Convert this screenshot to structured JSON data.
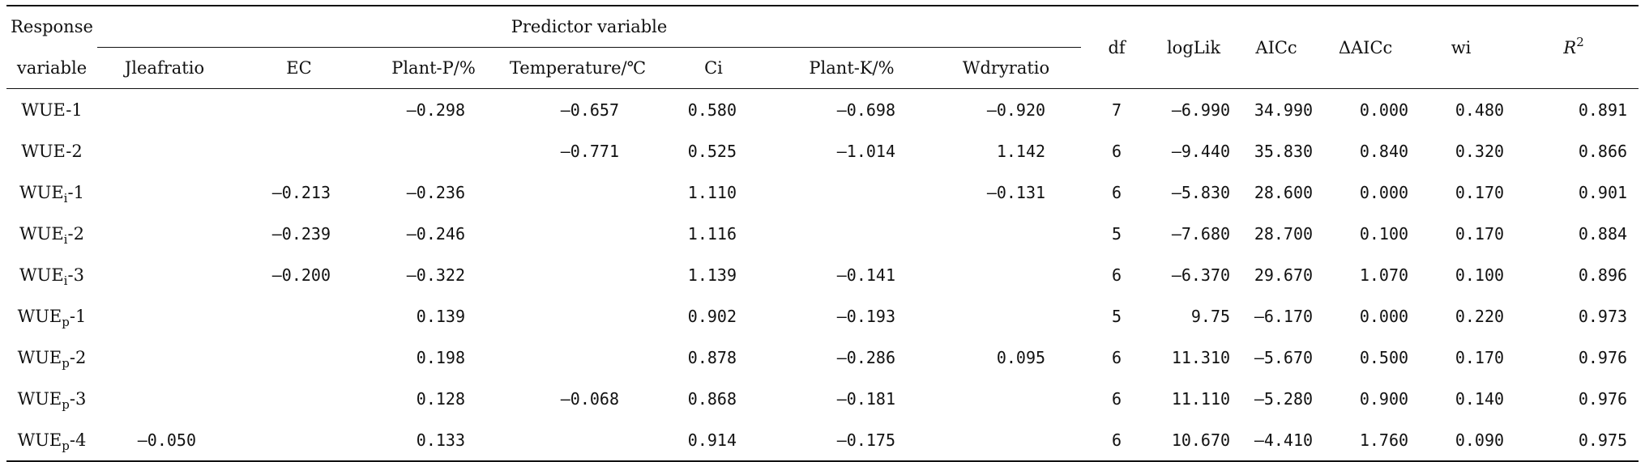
{
  "header": {
    "response_line1": "Response",
    "response_line2": "variable",
    "predictor_group": "Predictor variable",
    "predictors": [
      "Jleafratio",
      "EC",
      "Plant-P/%",
      "Temperature/℃",
      "Ci",
      "Plant-K/%",
      "Wdryratio"
    ],
    "stats": [
      "df",
      "logLik",
      "AICc",
      "ΔAICc",
      "wi"
    ],
    "r2_base": "R",
    "r2_exp": "2"
  },
  "rows": [
    {
      "base": "WUE",
      "sub": "",
      "suffix": "-1",
      "vals": [
        "",
        "",
        "—0.298",
        "—0.657",
        "0.580",
        "—0.698",
        "—0.920"
      ],
      "stats": [
        "7",
        "—6.990",
        "34.990",
        "0.000",
        "0.480",
        "0.891"
      ]
    },
    {
      "base": "WUE",
      "sub": "",
      "suffix": "-2",
      "vals": [
        "",
        "",
        "",
        "—0.771",
        "0.525",
        "—1.014",
        "1.142"
      ],
      "stats": [
        "6",
        "—9.440",
        "35.830",
        "0.840",
        "0.320",
        "0.866"
      ]
    },
    {
      "base": "WUE",
      "sub": "i",
      "suffix": "-1",
      "vals": [
        "",
        "—0.213",
        "—0.236",
        "",
        "1.110",
        "",
        "—0.131"
      ],
      "stats": [
        "6",
        "—5.830",
        "28.600",
        "0.000",
        "0.170",
        "0.901"
      ]
    },
    {
      "base": "WUE",
      "sub": "i",
      "suffix": "-2",
      "vals": [
        "",
        "—0.239",
        "—0.246",
        "",
        "1.116",
        "",
        ""
      ],
      "stats": [
        "5",
        "—7.680",
        "28.700",
        "0.100",
        "0.170",
        "0.884"
      ]
    },
    {
      "base": "WUE",
      "sub": "i",
      "suffix": "-3",
      "vals": [
        "",
        "—0.200",
        "—0.322",
        "",
        "1.139",
        "—0.141",
        ""
      ],
      "stats": [
        "6",
        "—6.370",
        "29.670",
        "1.070",
        "0.100",
        "0.896"
      ]
    },
    {
      "base": "WUE",
      "sub": "p",
      "suffix": "-1",
      "vals": [
        "",
        "",
        "0.139",
        "",
        "0.902",
        "—0.193",
        ""
      ],
      "stats": [
        "5",
        "9.75",
        "—6.170",
        "0.000",
        "0.220",
        "0.973"
      ]
    },
    {
      "base": "WUE",
      "sub": "p",
      "suffix": "-2",
      "vals": [
        "",
        "",
        "0.198",
        "",
        "0.878",
        "—0.286",
        "0.095"
      ],
      "stats": [
        "6",
        "11.310",
        "—5.670",
        "0.500",
        "0.170",
        "0.976"
      ]
    },
    {
      "base": "WUE",
      "sub": "p",
      "suffix": "-3",
      "vals": [
        "",
        "",
        "0.128",
        "—0.068",
        "0.868",
        "—0.181",
        ""
      ],
      "stats": [
        "6",
        "11.110",
        "—5.280",
        "0.900",
        "0.140",
        "0.976"
      ]
    },
    {
      "base": "WUE",
      "sub": "p",
      "suffix": "-4",
      "vals": [
        "—0.050",
        "",
        "0.133",
        "",
        "0.914",
        "—0.175",
        ""
      ],
      "stats": [
        "6",
        "10.670",
        "—4.410",
        "1.760",
        "0.090",
        "0.975"
      ]
    }
  ]
}
